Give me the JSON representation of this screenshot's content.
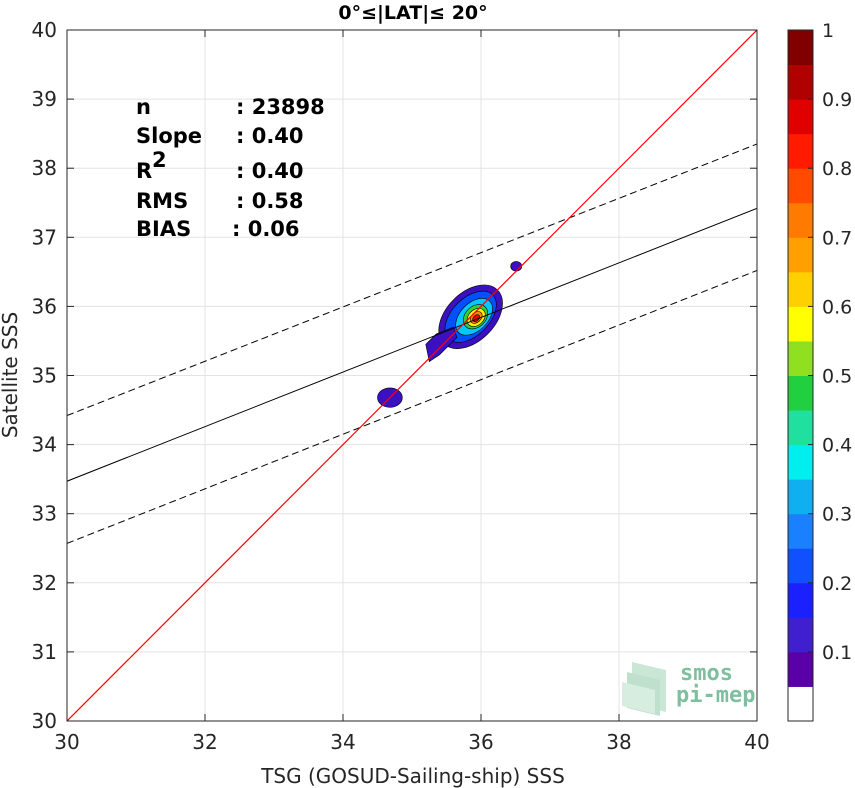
{
  "chart_data": {
    "type": "scatter",
    "title": "0°≤|LAT|≤ 20°",
    "xlabel": "TSG (GOSUD-Sailing-ship) SSS",
    "ylabel": "Satellite SSS",
    "xlim": [
      30,
      40
    ],
    "ylim": [
      30,
      40
    ],
    "xticks": [
      "30",
      "32",
      "34",
      "36",
      "38",
      "40"
    ],
    "yticks": [
      "30",
      "31",
      "32",
      "33",
      "34",
      "35",
      "36",
      "37",
      "38",
      "39",
      "40"
    ],
    "grid": true,
    "stats": [
      {
        "key": "n",
        "value": ": 23898"
      },
      {
        "key": "Slope",
        "value": ": 0.40"
      },
      {
        "key": "R",
        "sup": "2",
        "value": ": 0.40"
      },
      {
        "key": "RMS",
        "value": ": 0.58"
      },
      {
        "key": "BIAS",
        "value": ": 0.06"
      }
    ],
    "lines": {
      "identity": {
        "x": [
          30,
          40
        ],
        "y": [
          30,
          40
        ],
        "color": "#ff0000"
      },
      "fit": {
        "x": [
          30,
          40
        ],
        "y": [
          33.47,
          37.42
        ],
        "color": "#000000"
      },
      "fit_upper": {
        "x": [
          30,
          40
        ],
        "y": [
          34.42,
          38.35
        ],
        "dashed": true
      },
      "fit_lower": {
        "x": [
          30,
          40
        ],
        "y": [
          32.57,
          36.52
        ],
        "dashed": true
      }
    },
    "density_contours": [
      {
        "level": 0.05,
        "color": "#3a10c0",
        "cx": 35.85,
        "cy": 35.85,
        "rx": 0.55,
        "ry": 0.35,
        "angle": 45
      },
      {
        "level": 0.2,
        "color": "#0050ff",
        "cx": 35.85,
        "cy": 35.85,
        "rx": 0.45,
        "ry": 0.27,
        "angle": 45
      },
      {
        "level": 0.35,
        "color": "#00c8ff",
        "cx": 35.9,
        "cy": 35.85,
        "rx": 0.32,
        "ry": 0.2,
        "angle": 45
      },
      {
        "level": 0.5,
        "color": "#30d040",
        "cx": 35.92,
        "cy": 35.85,
        "rx": 0.2,
        "ry": 0.15,
        "angle": 45
      },
      {
        "level": 0.6,
        "color": "#ffee00",
        "cx": 35.93,
        "cy": 35.84,
        "rx": 0.15,
        "ry": 0.11,
        "angle": 45
      },
      {
        "level": 0.75,
        "color": "#ff8800",
        "cx": 35.93,
        "cy": 35.84,
        "rx": 0.1,
        "ry": 0.07,
        "angle": 45
      },
      {
        "level": 0.9,
        "color": "#ee0000",
        "cx": 35.93,
        "cy": 35.83,
        "rx": 0.06,
        "ry": 0.04,
        "angle": 45
      }
    ],
    "small_patches": [
      {
        "cx": 34.68,
        "cy": 34.68,
        "rx": 0.18,
        "ry": 0.14,
        "color": "#3a10c0"
      },
      {
        "cx": 36.51,
        "cy": 36.58,
        "rx": 0.08,
        "ry": 0.07,
        "color": "#3a10c0"
      }
    ],
    "colorbar": {
      "range": [
        0,
        1
      ],
      "ticks": [
        "0.1",
        "0.2",
        "0.3",
        "0.4",
        "0.5",
        "0.6",
        "0.7",
        "0.8",
        "0.9",
        "1"
      ],
      "colors": [
        "#ffffff",
        "#5a00a8",
        "#3f1fd0",
        "#1a20ff",
        "#1050ff",
        "#1a80ff",
        "#10b0f0",
        "#00eeee",
        "#20e0a0",
        "#20d040",
        "#90e020",
        "#ffff00",
        "#ffd000",
        "#ffa000",
        "#ff7a00",
        "#ff4a00",
        "#ff1a00",
        "#e00000",
        "#b00000",
        "#800000"
      ]
    }
  },
  "logo": {
    "line1": "smos",
    "line2": "pi-mep"
  }
}
